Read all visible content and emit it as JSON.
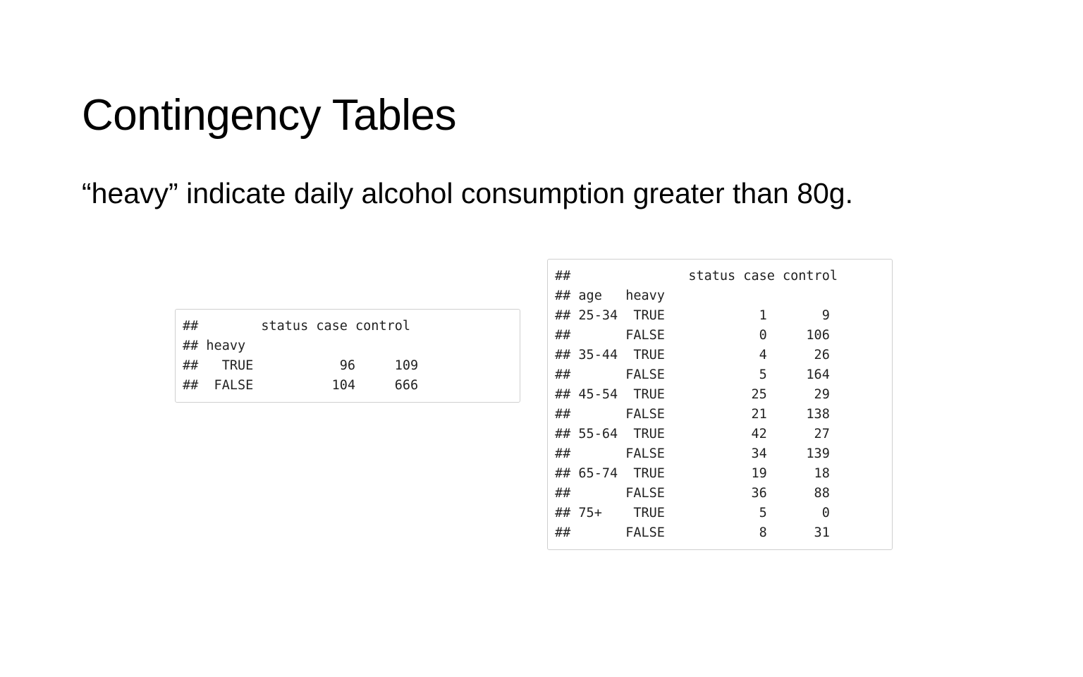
{
  "slide": {
    "title": "Contingency Tables",
    "text": "“heavy” indicate daily alcohol consumption greater than 80g."
  },
  "outputs": {
    "heavy_table": {
      "lines": [
        "##        status case control",
        "## heavy",
        "##   TRUE           96     109",
        "##  FALSE          104     666"
      ]
    },
    "age_heavy_table": {
      "lines": [
        "##               status case control",
        "## age   heavy",
        "## 25-34  TRUE            1       9",
        "##       FALSE            0     106",
        "## 35-44  TRUE            4      26",
        "##       FALSE            5     164",
        "## 45-54  TRUE           25      29",
        "##       FALSE           21     138",
        "## 55-64  TRUE           42      27",
        "##       FALSE           34     139",
        "## 65-74  TRUE           19      18",
        "##       FALSE           36      88",
        "## 75+    TRUE            5       0",
        "##       FALSE            8      31"
      ]
    }
  }
}
